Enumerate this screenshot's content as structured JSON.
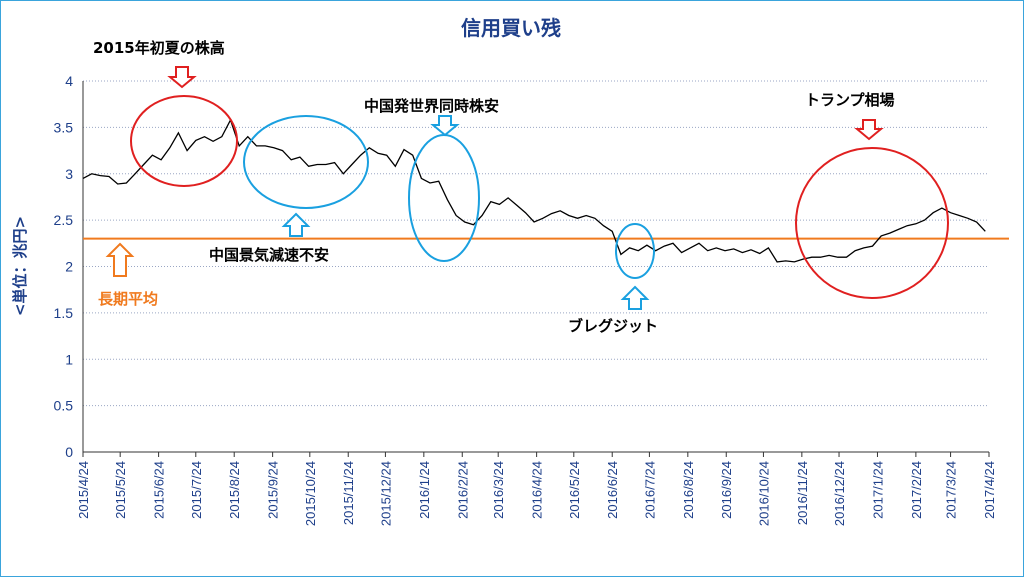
{
  "chart_data": {
    "type": "line",
    "title": "信用買い残",
    "ylabel": "<単位：兆円>",
    "ylim": [
      0,
      4
    ],
    "yticks": [
      "0",
      "0.5",
      "1",
      "1.5",
      "2",
      "2.5",
      "3",
      "3.5",
      "4"
    ],
    "xticks": [
      "2015/4/24",
      "2015/5/24",
      "2015/6/24",
      "2015/7/24",
      "2015/8/24",
      "2015/9/24",
      "2015/10/24",
      "2015/11/24",
      "2015/12/24",
      "2016/1/24",
      "2016/2/24",
      "2016/3/24",
      "2016/4/24",
      "2016/5/24",
      "2016/6/24",
      "2016/7/24",
      "2016/8/24",
      "2016/9/24",
      "2016/10/24",
      "2016/11/24",
      "2016/12/24",
      "2017/1/24",
      "2017/2/24",
      "2017/3/24",
      "2017/4/24"
    ],
    "grid": true,
    "reference_line": {
      "label": "長期平均",
      "value": 2.3,
      "color": "#f07a1e"
    },
    "series": [
      {
        "color": "#000000",
        "points": [
          [
            "2015-04-24",
            2.95
          ],
          [
            "2015-05-01",
            3.0
          ],
          [
            "2015-05-08",
            2.98
          ],
          [
            "2015-05-15",
            2.97
          ],
          [
            "2015-05-22",
            2.89
          ],
          [
            "2015-05-29",
            2.9
          ],
          [
            "2015-06-05",
            3.0
          ],
          [
            "2015-06-12",
            3.1
          ],
          [
            "2015-06-19",
            3.2
          ],
          [
            "2015-06-26",
            3.15
          ],
          [
            "2015-07-03",
            3.28
          ],
          [
            "2015-07-10",
            3.44
          ],
          [
            "2015-07-17",
            3.25
          ],
          [
            "2015-07-24",
            3.36
          ],
          [
            "2015-07-31",
            3.4
          ],
          [
            "2015-08-07",
            3.35
          ],
          [
            "2015-08-14",
            3.4
          ],
          [
            "2015-08-21",
            3.58
          ],
          [
            "2015-08-28",
            3.3
          ],
          [
            "2015-09-04",
            3.4
          ],
          [
            "2015-09-11",
            3.3
          ],
          [
            "2015-09-18",
            3.3
          ],
          [
            "2015-09-25",
            3.28
          ],
          [
            "2015-10-02",
            3.25
          ],
          [
            "2015-10-09",
            3.15
          ],
          [
            "2015-10-16",
            3.18
          ],
          [
            "2015-10-23",
            3.08
          ],
          [
            "2015-10-30",
            3.1
          ],
          [
            "2015-11-06",
            3.1
          ],
          [
            "2015-11-13",
            3.12
          ],
          [
            "2015-11-20",
            3.0
          ],
          [
            "2015-11-27",
            3.1
          ],
          [
            "2015-12-04",
            3.2
          ],
          [
            "2015-12-11",
            3.28
          ],
          [
            "2015-12-18",
            3.22
          ],
          [
            "2015-12-25",
            3.2
          ],
          [
            "2016-01-01",
            3.08
          ],
          [
            "2016-01-08",
            3.26
          ],
          [
            "2016-01-15",
            3.2
          ],
          [
            "2016-01-22",
            2.95
          ],
          [
            "2016-01-29",
            2.9
          ],
          [
            "2016-02-05",
            2.92
          ],
          [
            "2016-02-12",
            2.72
          ],
          [
            "2016-02-19",
            2.55
          ],
          [
            "2016-02-26",
            2.48
          ],
          [
            "2016-03-04",
            2.45
          ],
          [
            "2016-03-11",
            2.55
          ],
          [
            "2016-03-18",
            2.7
          ],
          [
            "2016-03-25",
            2.67
          ],
          [
            "2016-04-01",
            2.74
          ],
          [
            "2016-04-08",
            2.66
          ],
          [
            "2016-04-15",
            2.58
          ],
          [
            "2016-04-22",
            2.48
          ],
          [
            "2016-04-29",
            2.52
          ],
          [
            "2016-05-06",
            2.57
          ],
          [
            "2016-05-13",
            2.6
          ],
          [
            "2016-05-20",
            2.55
          ],
          [
            "2016-05-27",
            2.52
          ],
          [
            "2016-06-03",
            2.55
          ],
          [
            "2016-06-10",
            2.52
          ],
          [
            "2016-06-17",
            2.44
          ],
          [
            "2016-06-24",
            2.38
          ],
          [
            "2016-07-01",
            2.13
          ],
          [
            "2016-07-08",
            2.2
          ],
          [
            "2016-07-15",
            2.17
          ],
          [
            "2016-07-22",
            2.23
          ],
          [
            "2016-07-29",
            2.17
          ],
          [
            "2016-08-05",
            2.22
          ],
          [
            "2016-08-12",
            2.25
          ],
          [
            "2016-08-19",
            2.15
          ],
          [
            "2016-08-26",
            2.2
          ],
          [
            "2016-09-02",
            2.25
          ],
          [
            "2016-09-09",
            2.17
          ],
          [
            "2016-09-16",
            2.2
          ],
          [
            "2016-09-23",
            2.17
          ],
          [
            "2016-09-30",
            2.19
          ],
          [
            "2016-10-07",
            2.15
          ],
          [
            "2016-10-14",
            2.18
          ],
          [
            "2016-10-21",
            2.14
          ],
          [
            "2016-10-28",
            2.2
          ],
          [
            "2016-11-04",
            2.05
          ],
          [
            "2016-11-11",
            2.06
          ],
          [
            "2016-11-18",
            2.05
          ],
          [
            "2016-11-25",
            2.08
          ],
          [
            "2016-12-02",
            2.1
          ],
          [
            "2016-12-09",
            2.1
          ],
          [
            "2016-12-16",
            2.12
          ],
          [
            "2016-12-23",
            2.1
          ],
          [
            "2016-12-30",
            2.1
          ],
          [
            "2017-01-06",
            2.17
          ],
          [
            "2017-01-13",
            2.2
          ],
          [
            "2017-01-20",
            2.22
          ],
          [
            "2017-01-27",
            2.33
          ],
          [
            "2017-02-03",
            2.36
          ],
          [
            "2017-02-10",
            2.4
          ],
          [
            "2017-02-17",
            2.44
          ],
          [
            "2017-02-24",
            2.46
          ],
          [
            "2017-03-03",
            2.5
          ],
          [
            "2017-03-10",
            2.58
          ],
          [
            "2017-03-17",
            2.63
          ],
          [
            "2017-03-24",
            2.58
          ],
          [
            "2017-03-31",
            2.55
          ],
          [
            "2017-04-07",
            2.52
          ],
          [
            "2017-04-14",
            2.48
          ],
          [
            "2017-04-21",
            2.38
          ]
        ]
      }
    ],
    "annotations": [
      {
        "text": "2015年初夏の株高",
        "color": "#e02020"
      },
      {
        "text": "中国景気減速不安",
        "color": "#1aa0e0"
      },
      {
        "text": "中国発世界同時株安",
        "color": "#1aa0e0"
      },
      {
        "text": "ブレグジット",
        "color": "#1aa0e0"
      },
      {
        "text": "トランプ相場",
        "color": "#e02020"
      }
    ]
  }
}
